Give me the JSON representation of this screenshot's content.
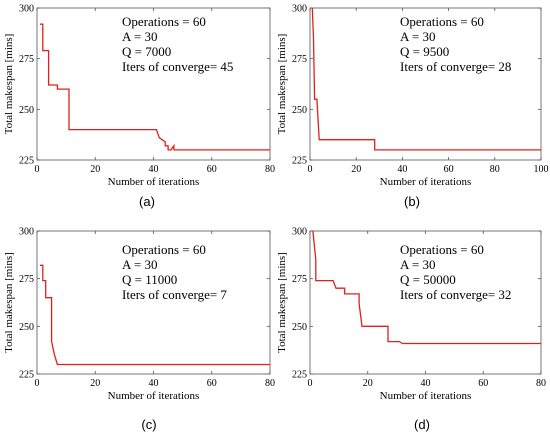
{
  "chart_data": [
    {
      "type": "line",
      "caption": "(a)",
      "xlabel": "Number of iterations",
      "ylabel": "Total makespan [mins]",
      "xlim": [
        0,
        80
      ],
      "ylim": [
        225,
        300
      ],
      "xticks": [
        0,
        20,
        40,
        60,
        80
      ],
      "yticks": [
        225,
        250,
        275,
        300
      ],
      "line_color": "#e0201b",
      "annotations": [
        "Operations = 60",
        "A = 30",
        "Q = 7000",
        "Iters of converge= 45"
      ],
      "series": [
        {
          "x": [
            1,
            2,
            2,
            4,
            4,
            7,
            7,
            11,
            11,
            41,
            42,
            44,
            44,
            45,
            45,
            46,
            47,
            47,
            80
          ],
          "y": [
            292,
            292,
            279,
            279,
            262,
            262,
            260,
            260,
            240,
            240,
            236,
            234,
            232,
            232,
            230,
            230,
            232,
            230,
            230
          ]
        }
      ]
    },
    {
      "type": "line",
      "caption": "(b)",
      "xlabel": "Number of iterations",
      "ylabel": "Total makespan [mins]",
      "xlim": [
        0,
        100
      ],
      "ylim": [
        225,
        300
      ],
      "xticks": [
        0,
        20,
        40,
        60,
        80,
        100
      ],
      "yticks": [
        225,
        250,
        275,
        300
      ],
      "line_color": "#e0201b",
      "annotations": [
        "Operations = 60",
        "A = 30",
        "Q = 9500",
        "Iters of converge= 28"
      ],
      "series": [
        {
          "x": [
            1,
            1.5,
            2,
            2,
            3,
            4,
            4,
            28,
            28,
            100
          ],
          "y": [
            300,
            285,
            255,
            255,
            255,
            235,
            235,
            235,
            230,
            230
          ]
        }
      ]
    },
    {
      "type": "line",
      "caption": "(c)",
      "xlabel": "Number of iterations",
      "ylabel": "Total makespan [mins]",
      "xlim": [
        0,
        80
      ],
      "ylim": [
        225,
        300
      ],
      "xticks": [
        0,
        20,
        40,
        60,
        80
      ],
      "yticks": [
        225,
        250,
        275,
        300
      ],
      "line_color": "#e0201b",
      "annotations": [
        "Operations = 60",
        "A = 30",
        "Q = 11000",
        "Iters of converge= 7"
      ],
      "series": [
        {
          "x": [
            1,
            2,
            2,
            3,
            3,
            5,
            5,
            6,
            7,
            7,
            80
          ],
          "y": [
            282,
            282,
            274,
            274,
            265,
            265,
            242,
            235,
            230,
            230,
            230
          ]
        }
      ]
    },
    {
      "type": "line",
      "caption": "(d)",
      "xlabel": "Number of iterations",
      "ylabel": "Total makespan [mins]",
      "xlim": [
        0,
        80
      ],
      "ylim": [
        225,
        300
      ],
      "xticks": [
        0,
        20,
        40,
        60,
        80
      ],
      "yticks": [
        225,
        250,
        275,
        300
      ],
      "line_color": "#e0201b",
      "annotations": [
        "Operations = 60",
        "A = 30",
        "Q = 50000",
        "Iters of converge= 32"
      ],
      "series": [
        {
          "x": [
            1,
            2,
            2,
            8,
            9,
            9,
            12,
            12,
            14,
            14,
            17,
            17,
            18,
            18,
            27,
            27,
            31,
            31,
            32,
            80
          ],
          "y": [
            300,
            285,
            274,
            274,
            270,
            270,
            270,
            267,
            267,
            267,
            267,
            262,
            250,
            250,
            250,
            242,
            242,
            242,
            241,
            241
          ]
        }
      ]
    }
  ]
}
